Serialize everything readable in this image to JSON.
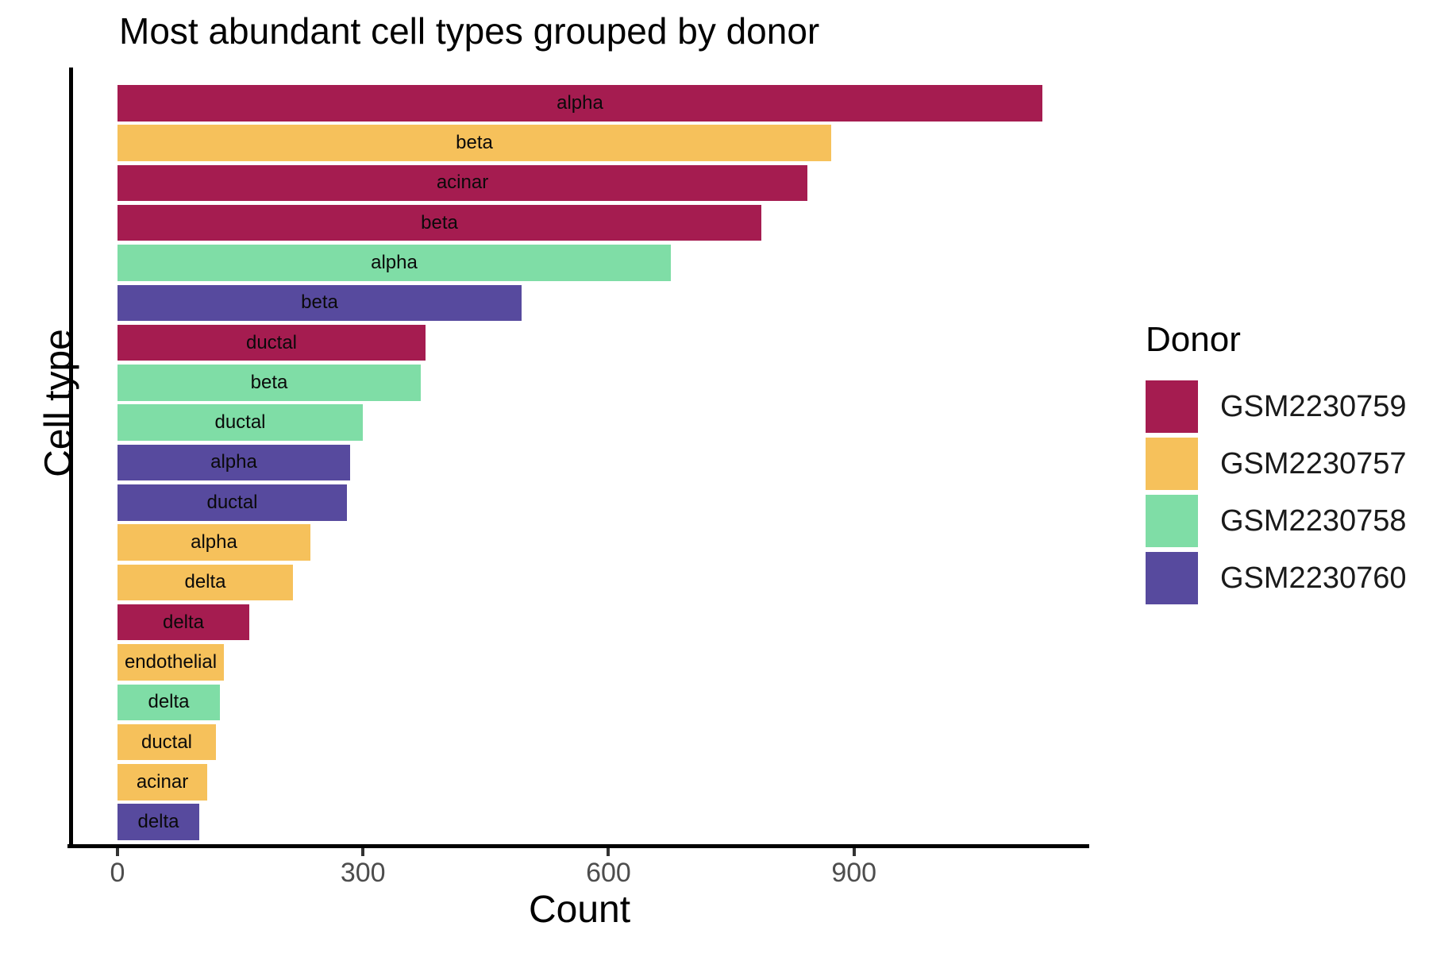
{
  "chart_data": {
    "type": "bar",
    "orientation": "horizontal",
    "title": "Most abundant cell types grouped by donor",
    "xlabel": "Count",
    "ylabel": "Cell type",
    "legend_title": "Donor",
    "legend_position": "right",
    "grid": false,
    "xlim": [
      0,
      1188
    ],
    "x_ticks": [
      0,
      300,
      600,
      900
    ],
    "x_tick_labels": [
      "0",
      "300",
      "600",
      "900"
    ],
    "donors": [
      {
        "id": "GSM2230759",
        "color": "#A51C50"
      },
      {
        "id": "GSM2230757",
        "color": "#F6C15B"
      },
      {
        "id": "GSM2230758",
        "color": "#7FDDA6"
      },
      {
        "id": "GSM2230760",
        "color": "#574A9E"
      }
    ],
    "bars": [
      {
        "cell_type": "alpha",
        "donor": "GSM2230759",
        "count": 1130
      },
      {
        "cell_type": "beta",
        "donor": "GSM2230757",
        "count": 872
      },
      {
        "cell_type": "acinar",
        "donor": "GSM2230759",
        "count": 843
      },
      {
        "cell_type": "beta",
        "donor": "GSM2230759",
        "count": 787
      },
      {
        "cell_type": "alpha",
        "donor": "GSM2230758",
        "count": 676
      },
      {
        "cell_type": "beta",
        "donor": "GSM2230760",
        "count": 494
      },
      {
        "cell_type": "ductal",
        "donor": "GSM2230759",
        "count": 376
      },
      {
        "cell_type": "beta",
        "donor": "GSM2230758",
        "count": 371
      },
      {
        "cell_type": "ductal",
        "donor": "GSM2230758",
        "count": 300
      },
      {
        "cell_type": "alpha",
        "donor": "GSM2230760",
        "count": 284
      },
      {
        "cell_type": "ductal",
        "donor": "GSM2230760",
        "count": 280
      },
      {
        "cell_type": "alpha",
        "donor": "GSM2230757",
        "count": 236
      },
      {
        "cell_type": "delta",
        "donor": "GSM2230757",
        "count": 214
      },
      {
        "cell_type": "delta",
        "donor": "GSM2230759",
        "count": 161
      },
      {
        "cell_type": "endothelial",
        "donor": "GSM2230757",
        "count": 130
      },
      {
        "cell_type": "delta",
        "donor": "GSM2230758",
        "count": 125
      },
      {
        "cell_type": "ductal",
        "donor": "GSM2230757",
        "count": 120
      },
      {
        "cell_type": "acinar",
        "donor": "GSM2230757",
        "count": 110
      },
      {
        "cell_type": "delta",
        "donor": "GSM2230760",
        "count": 100
      }
    ]
  }
}
